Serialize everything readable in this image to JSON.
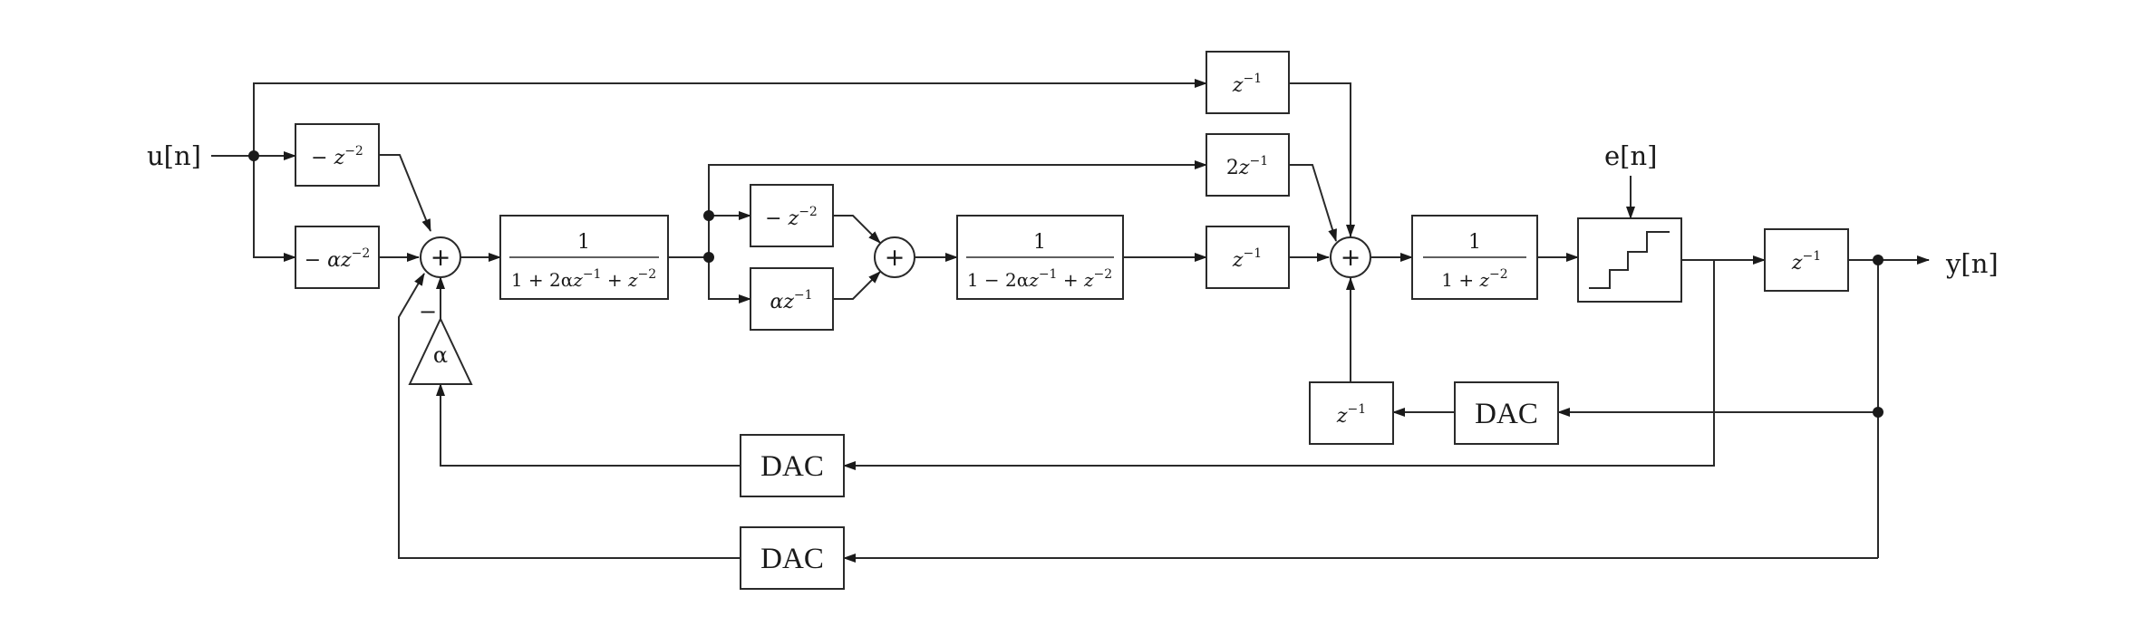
{
  "signals": {
    "input": "u[n]",
    "output": "y[n]",
    "noise": "e[n]"
  },
  "blocks": {
    "neg_z2_top": {
      "sign": "−",
      "coef": "",
      "var": "z",
      "exp": "−2"
    },
    "neg_alpha_z2": {
      "sign": "−",
      "coef": "α",
      "var": "z",
      "exp": "−2"
    },
    "filter1": {
      "num": "1",
      "den_a": "1 + 2α",
      "den_b": "z",
      "den_b_exp": "−1",
      "den_c": " + ",
      "den_d": "z",
      "den_d_exp": "−2"
    },
    "neg_z2_mid": {
      "sign": "−",
      "coef": "",
      "var": "z",
      "exp": "−2"
    },
    "alpha_z1": {
      "sign": "",
      "coef": "α",
      "var": "z",
      "exp": "−1"
    },
    "filter2": {
      "num": "1",
      "den_a": "1 − 2α",
      "den_b": "z",
      "den_b_exp": "−1",
      "den_c": " + ",
      "den_d": "z",
      "den_d_exp": "−2"
    },
    "z1_top": {
      "sign": "",
      "coef": "",
      "var": "z",
      "exp": "−1"
    },
    "two_z1": {
      "sign": "",
      "coef": "2",
      "var": "z",
      "exp": "−1"
    },
    "z1_mid": {
      "sign": "",
      "coef": "",
      "var": "z",
      "exp": "−1"
    },
    "filter3": {
      "num": "1",
      "den_a": "1 + ",
      "den_b": "z",
      "den_b_exp": "−2"
    },
    "z1_out": {
      "sign": "",
      "coef": "",
      "var": "z",
      "exp": "−1"
    },
    "z1_fb": {
      "sign": "",
      "coef": "",
      "var": "z",
      "exp": "−1"
    },
    "gain_alpha": "α",
    "dac_right": "DAC",
    "dac_mid": "DAC",
    "dac_bottom": "DAC",
    "minus_sign": "−",
    "sum_symbol": "+"
  }
}
